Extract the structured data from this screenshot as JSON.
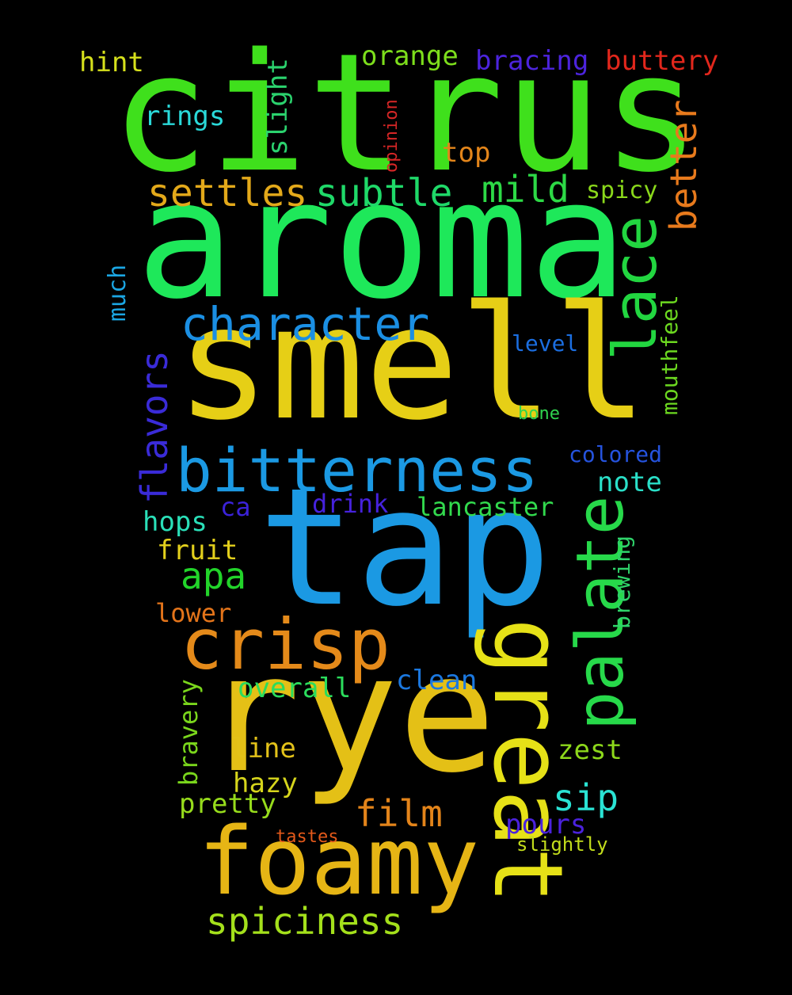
{
  "background": "#000000",
  "words": [
    {
      "id": "citrus",
      "text": "citrus",
      "color": "#3fe01c"
    },
    {
      "id": "aroma",
      "text": "aroma",
      "color": "#1ee85a"
    },
    {
      "id": "smell",
      "text": "smell",
      "color": "#e6cf16"
    },
    {
      "id": "tap",
      "text": "tap",
      "color": "#1b99e3"
    },
    {
      "id": "rye",
      "text": "rye",
      "color": "#e4c016"
    },
    {
      "id": "great",
      "text": "great",
      "color": "#e6e117"
    },
    {
      "id": "foamy",
      "text": "foamy",
      "color": "#e6b515"
    },
    {
      "id": "bitterness",
      "text": "bitterness",
      "color": "#1b99e3"
    },
    {
      "id": "palate",
      "text": "palate",
      "color": "#27d94a"
    },
    {
      "id": "lace",
      "text": "lace",
      "color": "#22d640"
    },
    {
      "id": "crisp",
      "text": "crisp",
      "color": "#e48a1a"
    },
    {
      "id": "character",
      "text": "character",
      "color": "#1b8fe3"
    },
    {
      "id": "settles",
      "text": "settles",
      "color": "#e3a91a"
    },
    {
      "id": "subtle",
      "text": "subtle",
      "color": "#1fd969"
    },
    {
      "id": "mild",
      "text": "mild",
      "color": "#2dd946"
    },
    {
      "id": "better",
      "text": "better",
      "color": "#e87a1c"
    },
    {
      "id": "spiciness",
      "text": "spiciness",
      "color": "#a4e01b"
    },
    {
      "id": "flavors",
      "text": "flavors",
      "color": "#3a2bd8"
    },
    {
      "id": "film",
      "text": "film",
      "color": "#e3841a"
    },
    {
      "id": "apa",
      "text": "apa",
      "color": "#22d42a"
    },
    {
      "id": "sip",
      "text": "sip",
      "color": "#2ae3d4"
    },
    {
      "id": "orange",
      "text": "orange",
      "color": "#7dde1c"
    },
    {
      "id": "bracing",
      "text": "bracing",
      "color": "#4c24dd"
    },
    {
      "id": "buttery",
      "text": "buttery",
      "color": "#e2271c"
    },
    {
      "id": "hint",
      "text": "hint",
      "color": "#d6e01c"
    },
    {
      "id": "slight",
      "text": "slight",
      "color": "#2bd36e"
    },
    {
      "id": "rings",
      "text": "rings",
      "color": "#2ad9d9"
    },
    {
      "id": "opinion",
      "text": "opinion",
      "color": "#d62626"
    },
    {
      "id": "top",
      "text": "top",
      "color": "#e3851a"
    },
    {
      "id": "spicy",
      "text": "spicy",
      "color": "#8ad81b"
    },
    {
      "id": "much",
      "text": "much",
      "color": "#1ba6e3"
    },
    {
      "id": "level",
      "text": "level",
      "color": "#1b6ee0"
    },
    {
      "id": "mouthfeel",
      "text": "mouthfeel",
      "color": "#6cd820"
    },
    {
      "id": "bone",
      "text": "bone",
      "color": "#2fd34f"
    },
    {
      "id": "colored",
      "text": "colored",
      "color": "#2553de"
    },
    {
      "id": "note",
      "text": "note",
      "color": "#2adfc8"
    },
    {
      "id": "ca",
      "text": "ca",
      "color": "#3b22d9"
    },
    {
      "id": "drink",
      "text": "drink",
      "color": "#4622dd"
    },
    {
      "id": "lancaster",
      "text": "lancaster",
      "color": "#32d94d"
    },
    {
      "id": "hops",
      "text": "hops",
      "color": "#2adfb8"
    },
    {
      "id": "fruit",
      "text": "fruit",
      "color": "#e3d01c"
    },
    {
      "id": "brewing",
      "text": "brewing",
      "color": "#2fd36a"
    },
    {
      "id": "lower",
      "text": "lower",
      "color": "#e3741a"
    },
    {
      "id": "clean",
      "text": "clean",
      "color": "#1b78e0"
    },
    {
      "id": "overall",
      "text": "overall",
      "color": "#2bdc5c"
    },
    {
      "id": "bravery",
      "text": "bravery",
      "color": "#7ad61c"
    },
    {
      "id": "line",
      "text": "line",
      "color": "#e3c21a"
    },
    {
      "id": "zest",
      "text": "zest",
      "color": "#8dd81b"
    },
    {
      "id": "hazy",
      "text": "hazy",
      "color": "#d6d51c"
    },
    {
      "id": "pretty",
      "text": "pretty",
      "color": "#97dc1c"
    },
    {
      "id": "pours",
      "text": "pours",
      "color": "#4b22dd"
    },
    {
      "id": "tastes",
      "text": "tastes",
      "color": "#e3591a"
    },
    {
      "id": "slightly",
      "text": "slightly",
      "color": "#c3dd1c"
    }
  ]
}
